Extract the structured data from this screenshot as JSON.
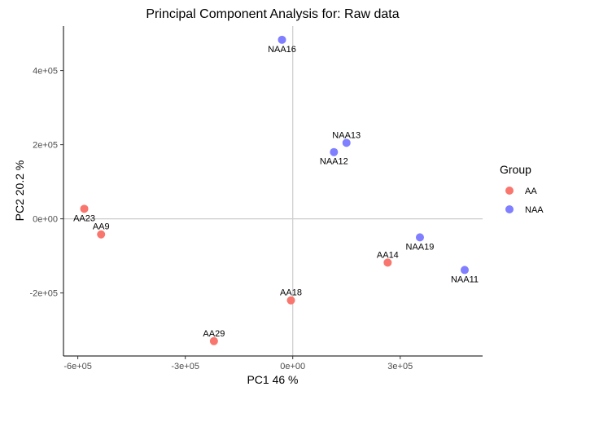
{
  "chart_data": {
    "type": "scatter",
    "title": "Principal Component Analysis for:  Raw data",
    "xlabel": "PC1 46 %",
    "ylabel": "PC2 20.2 %",
    "xlim": [
      -640000,
      530000
    ],
    "ylim": [
      -370000,
      520000
    ],
    "x_ticks": [
      {
        "value": -600000,
        "label": "-6e+05"
      },
      {
        "value": -300000,
        "label": "-3e+05"
      },
      {
        "value": 0,
        "label": "0e+00"
      },
      {
        "value": 300000,
        "label": "3e+05"
      }
    ],
    "y_ticks": [
      {
        "value": -200000,
        "label": "-2e+05"
      },
      {
        "value": 0,
        "label": "0e+00"
      },
      {
        "value": 200000,
        "label": "2e+05"
      },
      {
        "value": 400000,
        "label": "4e+05"
      }
    ],
    "reference_lines": {
      "x": 0,
      "y": 0
    },
    "grid": false,
    "legend": {
      "title": "Group",
      "position": "right",
      "entries": [
        {
          "name": "AA",
          "color": "#F8766D"
        },
        {
          "name": "NAA",
          "color": "#7F7FFF"
        }
      ]
    },
    "series": [
      {
        "name": "AA",
        "color": "#F8766D",
        "points": [
          {
            "label": "AA23",
            "x": -582000,
            "y": 27000,
            "label_pos": "below"
          },
          {
            "label": "AA9",
            "x": -535000,
            "y": -42000,
            "label_pos": "above"
          },
          {
            "label": "AA29",
            "x": -220000,
            "y": -330000,
            "label_pos": "above"
          },
          {
            "label": "AA18",
            "x": -5000,
            "y": -220000,
            "label_pos": "above"
          },
          {
            "label": "AA14",
            "x": 265000,
            "y": -118000,
            "label_pos": "above"
          }
        ]
      },
      {
        "name": "NAA",
        "color": "#7F7FFF",
        "points": [
          {
            "label": "NAA16",
            "x": -30000,
            "y": 483000,
            "label_pos": "below"
          },
          {
            "label": "NAA12",
            "x": 115000,
            "y": 180000,
            "label_pos": "below"
          },
          {
            "label": "NAA13",
            "x": 150000,
            "y": 205000,
            "label_pos": "above"
          },
          {
            "label": "NAA19",
            "x": 355000,
            "y": -50000,
            "label_pos": "below"
          },
          {
            "label": "NAA11",
            "x": 480000,
            "y": -138000,
            "label_pos": "below"
          }
        ]
      }
    ]
  }
}
